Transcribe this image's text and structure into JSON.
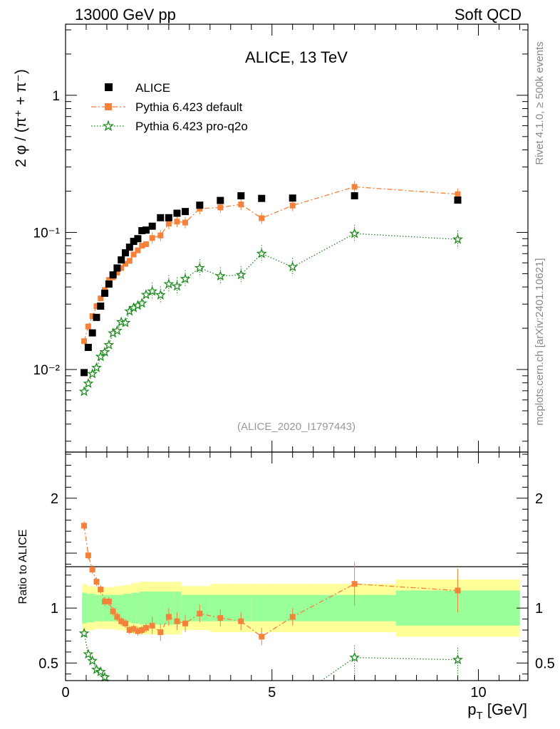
{
  "header": {
    "left": "13000 GeV pp",
    "right": "Soft QCD"
  },
  "side": {
    "rivet": "Rivet 4.1.0, ≥ 500k events",
    "mcplots": "mcplots.cern.ch [arXiv:2401.10621]"
  },
  "chart_data": [
    {
      "type": "scatter",
      "panel": "main",
      "title": "ALICE, 13 TeV",
      "analysis_tag": "(ALICE_2020_I1797443)",
      "ylabel": "2 φ / (π⁺ + π⁻)",
      "yscale": "log",
      "ylim": [
        0.0025,
        3.3
      ],
      "xlim": [
        0,
        11.2
      ],
      "yticks": [
        {
          "value": 0.01,
          "label": "10⁻²"
        },
        {
          "value": 0.1,
          "label": "10⁻¹"
        },
        {
          "value": 1,
          "label": "1"
        }
      ],
      "legend": [
        "ALICE",
        "Pythia 6.423 default",
        "Pythia 6.423 pro-q2o"
      ],
      "legend_position": "top-left",
      "series": [
        {
          "name": "ALICE",
          "style": "black-square",
          "x": [
            0.45,
            0.55,
            0.65,
            0.75,
            0.85,
            0.95,
            1.05,
            1.15,
            1.25,
            1.35,
            1.45,
            1.55,
            1.65,
            1.75,
            1.85,
            1.95,
            2.1,
            2.3,
            2.5,
            2.7,
            2.9,
            3.25,
            3.75,
            4.25,
            4.75,
            5.5,
            7.0,
            9.5
          ],
          "y": [
            0.0095,
            0.0145,
            0.0185,
            0.024,
            0.029,
            0.036,
            0.042,
            0.049,
            0.055,
            0.063,
            0.071,
            0.078,
            0.086,
            0.09,
            0.103,
            0.104,
            0.111,
            0.128,
            0.128,
            0.138,
            0.142,
            0.158,
            0.171,
            0.185,
            0.177,
            0.178,
            0.185,
            0.172
          ]
        },
        {
          "name": "Pythia 6.423 default",
          "style": "orange-square-dashdot",
          "color": "#f4823a",
          "x": [
            0.45,
            0.55,
            0.65,
            0.75,
            0.85,
            0.95,
            1.05,
            1.15,
            1.25,
            1.35,
            1.45,
            1.55,
            1.65,
            1.75,
            1.85,
            1.95,
            2.1,
            2.3,
            2.5,
            2.7,
            2.9,
            3.25,
            3.75,
            4.25,
            4.75,
            5.5,
            7.0,
            9.5
          ],
          "y": [
            0.0161,
            0.0206,
            0.0245,
            0.029,
            0.033,
            0.038,
            0.045,
            0.047,
            0.051,
            0.055,
            0.059,
            0.062,
            0.069,
            0.074,
            0.08,
            0.082,
            0.091,
            0.095,
            0.116,
            0.12,
            0.118,
            0.149,
            0.152,
            0.16,
            0.127,
            0.157,
            0.215,
            0.19
          ]
        },
        {
          "name": "Pythia 6.423 pro-q2o",
          "style": "green-star-dotted",
          "color": "#1e8a1e",
          "x": [
            0.45,
            0.55,
            0.65,
            0.75,
            0.85,
            0.95,
            1.05,
            1.15,
            1.25,
            1.35,
            1.45,
            1.55,
            1.65,
            1.75,
            1.85,
            1.95,
            2.1,
            2.3,
            2.5,
            2.7,
            2.9,
            3.25,
            3.75,
            4.25,
            4.75,
            5.5,
            7.0,
            9.5
          ],
          "y": [
            0.0069,
            0.0079,
            0.0093,
            0.0103,
            0.0124,
            0.0134,
            0.0151,
            0.0184,
            0.0192,
            0.0222,
            0.0219,
            0.0266,
            0.0282,
            0.0293,
            0.0304,
            0.0351,
            0.0372,
            0.0349,
            0.042,
            0.0405,
            0.0458,
            0.055,
            0.048,
            0.049,
            0.07,
            0.056,
            0.098,
            0.089
          ]
        }
      ]
    },
    {
      "type": "scatter",
      "panel": "ratio",
      "ylabel": "Ratio to ALICE",
      "xlabel": "p_T [GeV]",
      "ylim": [
        0.34,
        2.42
      ],
      "xlim": [
        0,
        11.2
      ],
      "yticks": [
        {
          "value": 0.5,
          "label": "0.5"
        },
        {
          "value": 1,
          "label": "1"
        },
        {
          "value": 2,
          "label": "2"
        }
      ],
      "xticks": [
        {
          "value": 0,
          "label": "0"
        },
        {
          "value": 5,
          "label": "5"
        },
        {
          "value": 10,
          "label": "10"
        }
      ],
      "bands": {
        "edges": [
          0.4,
          0.5,
          0.6,
          0.7,
          0.8,
          0.9,
          1.0,
          1.1,
          1.2,
          1.3,
          1.4,
          1.5,
          1.6,
          1.7,
          1.8,
          1.9,
          2.0,
          2.2,
          2.4,
          2.6,
          2.8,
          3.0,
          3.5,
          4.0,
          4.5,
          5.0,
          6.0,
          8.0,
          11.0
        ],
        "stat_halfwidth": [
          0.14,
          0.13,
          0.13,
          0.12,
          0.12,
          0.12,
          0.12,
          0.12,
          0.12,
          0.12,
          0.13,
          0.13,
          0.14,
          0.14,
          0.15,
          0.15,
          0.15,
          0.15,
          0.15,
          0.15,
          0.12,
          0.12,
          0.12,
          0.12,
          0.12,
          0.12,
          0.12,
          0.16
        ],
        "total_halfwidth": [
          0.22,
          0.2,
          0.2,
          0.19,
          0.19,
          0.19,
          0.19,
          0.19,
          0.2,
          0.2,
          0.21,
          0.21,
          0.23,
          0.23,
          0.24,
          0.24,
          0.24,
          0.24,
          0.24,
          0.24,
          0.2,
          0.2,
          0.22,
          0.22,
          0.22,
          0.22,
          0.22,
          0.26
        ],
        "stat_color": "#99ff99",
        "total_color": "#ffff99"
      },
      "series": [
        {
          "name": "Pythia 6.423 default",
          "color": "#f4823a",
          "x": [
            0.45,
            0.55,
            0.65,
            0.75,
            0.85,
            0.95,
            1.05,
            1.15,
            1.25,
            1.35,
            1.45,
            1.55,
            1.65,
            1.75,
            1.85,
            1.95,
            2.1,
            2.3,
            2.5,
            2.7,
            2.9,
            3.25,
            3.75,
            4.25,
            4.75,
            5.5,
            7.0,
            9.5
          ],
          "y": [
            1.75,
            1.48,
            1.35,
            1.24,
            1.17,
            1.06,
            1.06,
            0.97,
            0.92,
            0.88,
            0.86,
            0.8,
            0.81,
            0.79,
            0.8,
            0.82,
            0.84,
            0.78,
            0.92,
            0.88,
            0.86,
            0.95,
            0.91,
            0.88,
            0.74,
            0.92,
            1.22,
            1.16
          ]
        },
        {
          "name": "Pythia 6.423 pro-q2o",
          "color": "#1e8a1e",
          "x": [
            0.45,
            0.55,
            0.65,
            0.75,
            0.85,
            0.95,
            7.0,
            9.5
          ],
          "y": [
            0.77,
            0.58,
            0.52,
            0.44,
            0.42,
            0.37,
            0.55,
            0.53
          ],
          "offscale_segment_to": 6.2
        }
      ]
    }
  ]
}
